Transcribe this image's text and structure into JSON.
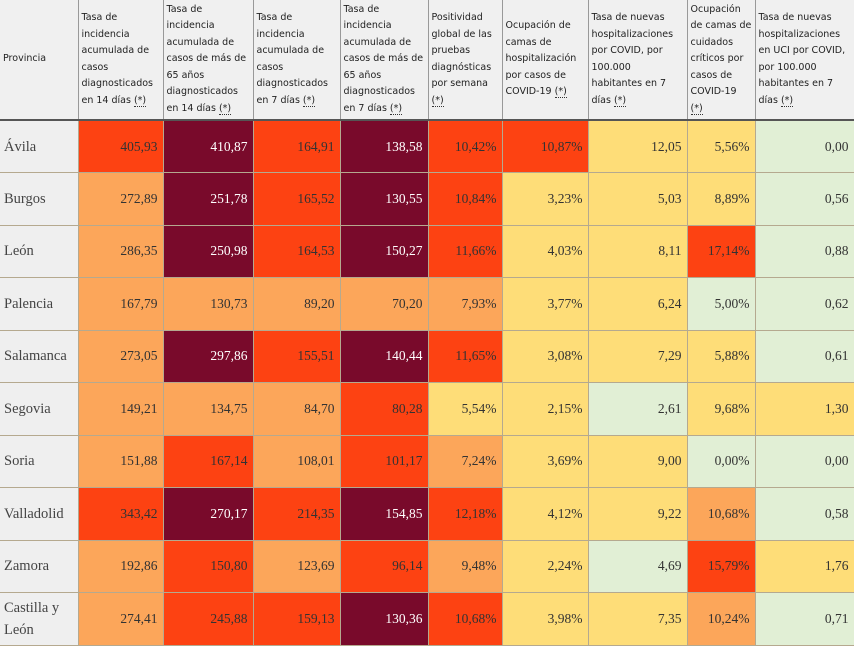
{
  "colors": {
    "maroon": "#790a2b",
    "red": "#fd4212",
    "orange": "#fca65a",
    "yellow": "#fedd78",
    "green": "#e1efd5"
  },
  "headers": [
    {
      "label": "Provincia",
      "note": ""
    },
    {
      "label": "Tasa de incidencia acumulada de casos diagnosticados en 14 días ",
      "note": "(*)"
    },
    {
      "label": "Tasa de incidencia acumulada de casos de más de 65 años diagnosticados en 14 días ",
      "note": "(*)"
    },
    {
      "label": "Tasa de incidencia acumulada de casos diagnosticados en 7 días ",
      "note": "(*)"
    },
    {
      "label": "Tasa de incidencia acumulada de casos de más de 65 años diagnosticados en 7 días ",
      "note": "(*)"
    },
    {
      "label": "Positividad global de las pruebas diagnósticas por semana ",
      "note": "(*)"
    },
    {
      "label": "Ocupación de camas de hospitalización por casos de COVID-19 ",
      "note": "(*)"
    },
    {
      "label": "Tasa de nuevas hospitalizaciones por COVID, por 100.000 habitantes en 7 días ",
      "note": "(*)"
    },
    {
      "label": "Ocupación de camas de cuidados críticos por casos de COVID-19 ",
      "note": "(*)"
    },
    {
      "label": "Tasa de nuevas hospitalizaciones en UCI por COVID, por 100.000 habitantes en 7 días ",
      "note": "(*)"
    }
  ],
  "rows": [
    {
      "province": "Ávila",
      "values": [
        "405,93",
        "410,87",
        "164,91",
        "138,58",
        "10,42%",
        "10,87%",
        "12,05",
        "5,56%",
        "0,00"
      ],
      "levels": [
        "red",
        "maroon",
        "red",
        "maroon",
        "red",
        "red",
        "yellow",
        "yellow",
        "green"
      ]
    },
    {
      "province": "Burgos",
      "values": [
        "272,89",
        "251,78",
        "165,52",
        "130,55",
        "10,84%",
        "3,23%",
        "5,03",
        "8,89%",
        "0,56"
      ],
      "levels": [
        "orange",
        "maroon",
        "red",
        "maroon",
        "red",
        "yellow",
        "yellow",
        "yellow",
        "green"
      ]
    },
    {
      "province": "León",
      "values": [
        "286,35",
        "250,98",
        "164,53",
        "150,27",
        "11,66%",
        "4,03%",
        "8,11",
        "17,14%",
        "0,88"
      ],
      "levels": [
        "orange",
        "maroon",
        "red",
        "maroon",
        "red",
        "yellow",
        "yellow",
        "red",
        "green"
      ]
    },
    {
      "province": "Palencia",
      "values": [
        "167,79",
        "130,73",
        "89,20",
        "70,20",
        "7,93%",
        "3,77%",
        "6,24",
        "5,00%",
        "0,62"
      ],
      "levels": [
        "orange",
        "orange",
        "orange",
        "orange",
        "orange",
        "yellow",
        "yellow",
        "green",
        "green"
      ]
    },
    {
      "province": "Salamanca",
      "values": [
        "273,05",
        "297,86",
        "155,51",
        "140,44",
        "11,65%",
        "3,08%",
        "7,29",
        "5,88%",
        "0,61"
      ],
      "levels": [
        "orange",
        "maroon",
        "red",
        "maroon",
        "red",
        "yellow",
        "yellow",
        "yellow",
        "green"
      ]
    },
    {
      "province": "Segovia",
      "values": [
        "149,21",
        "134,75",
        "84,70",
        "80,28",
        "5,54%",
        "2,15%",
        "2,61",
        "9,68%",
        "1,30"
      ],
      "levels": [
        "orange",
        "orange",
        "orange",
        "red",
        "yellow",
        "yellow",
        "green",
        "yellow",
        "yellow"
      ]
    },
    {
      "province": "Soria",
      "values": [
        "151,88",
        "167,14",
        "108,01",
        "101,17",
        "7,24%",
        "3,69%",
        "9,00",
        "0,00%",
        "0,00"
      ],
      "levels": [
        "orange",
        "red",
        "orange",
        "red",
        "orange",
        "yellow",
        "yellow",
        "green",
        "green"
      ]
    },
    {
      "province": "Valladolid",
      "values": [
        "343,42",
        "270,17",
        "214,35",
        "154,85",
        "12,18%",
        "4,12%",
        "9,22",
        "10,68%",
        "0,58"
      ],
      "levels": [
        "red",
        "maroon",
        "red",
        "maroon",
        "red",
        "yellow",
        "yellow",
        "orange",
        "green"
      ]
    },
    {
      "province": "Zamora",
      "values": [
        "192,86",
        "150,80",
        "123,69",
        "96,14",
        "9,48%",
        "2,24%",
        "4,69",
        "15,79%",
        "1,76"
      ],
      "levels": [
        "orange",
        "red",
        "orange",
        "red",
        "orange",
        "yellow",
        "green",
        "red",
        "yellow"
      ]
    },
    {
      "province": "Castilla y León",
      "values": [
        "274,41",
        "245,88",
        "159,13",
        "130,36",
        "10,68%",
        "3,98%",
        "7,35",
        "10,24%",
        "0,71"
      ],
      "levels": [
        "orange",
        "red",
        "red",
        "maroon",
        "red",
        "yellow",
        "yellow",
        "orange",
        "green"
      ]
    }
  ]
}
